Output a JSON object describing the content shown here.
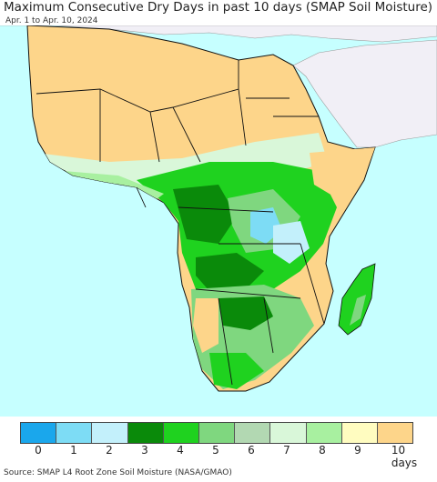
{
  "title": "Maximum Consecutive Dry Days in past 10 days (SMAP Soil Moisture)",
  "subtitle": "Apr. 1 to Apr. 10, 2024",
  "source": "Source: SMAP L4 Root Zone Soil Moisture (NASA/GMAO)",
  "legend": {
    "labels": [
      "0",
      "1",
      "2",
      "3",
      "4",
      "5",
      "6",
      "7",
      "8",
      "9",
      "10 days"
    ],
    "colors": [
      "#1aa7ec",
      "#7ddcf5",
      "#c3f0fb",
      "#0a8a0a",
      "#1fd21f",
      "#7fd77f",
      "#b2d8b2",
      "#d9f7d9",
      "#a8f0a0",
      "#fffcc0",
      "#fdd58a"
    ]
  },
  "colors": {
    "ocean": "#c6ffff",
    "dry": "#fdd58a",
    "nonafrica": "#f1eff6",
    "border": "#111111"
  }
}
